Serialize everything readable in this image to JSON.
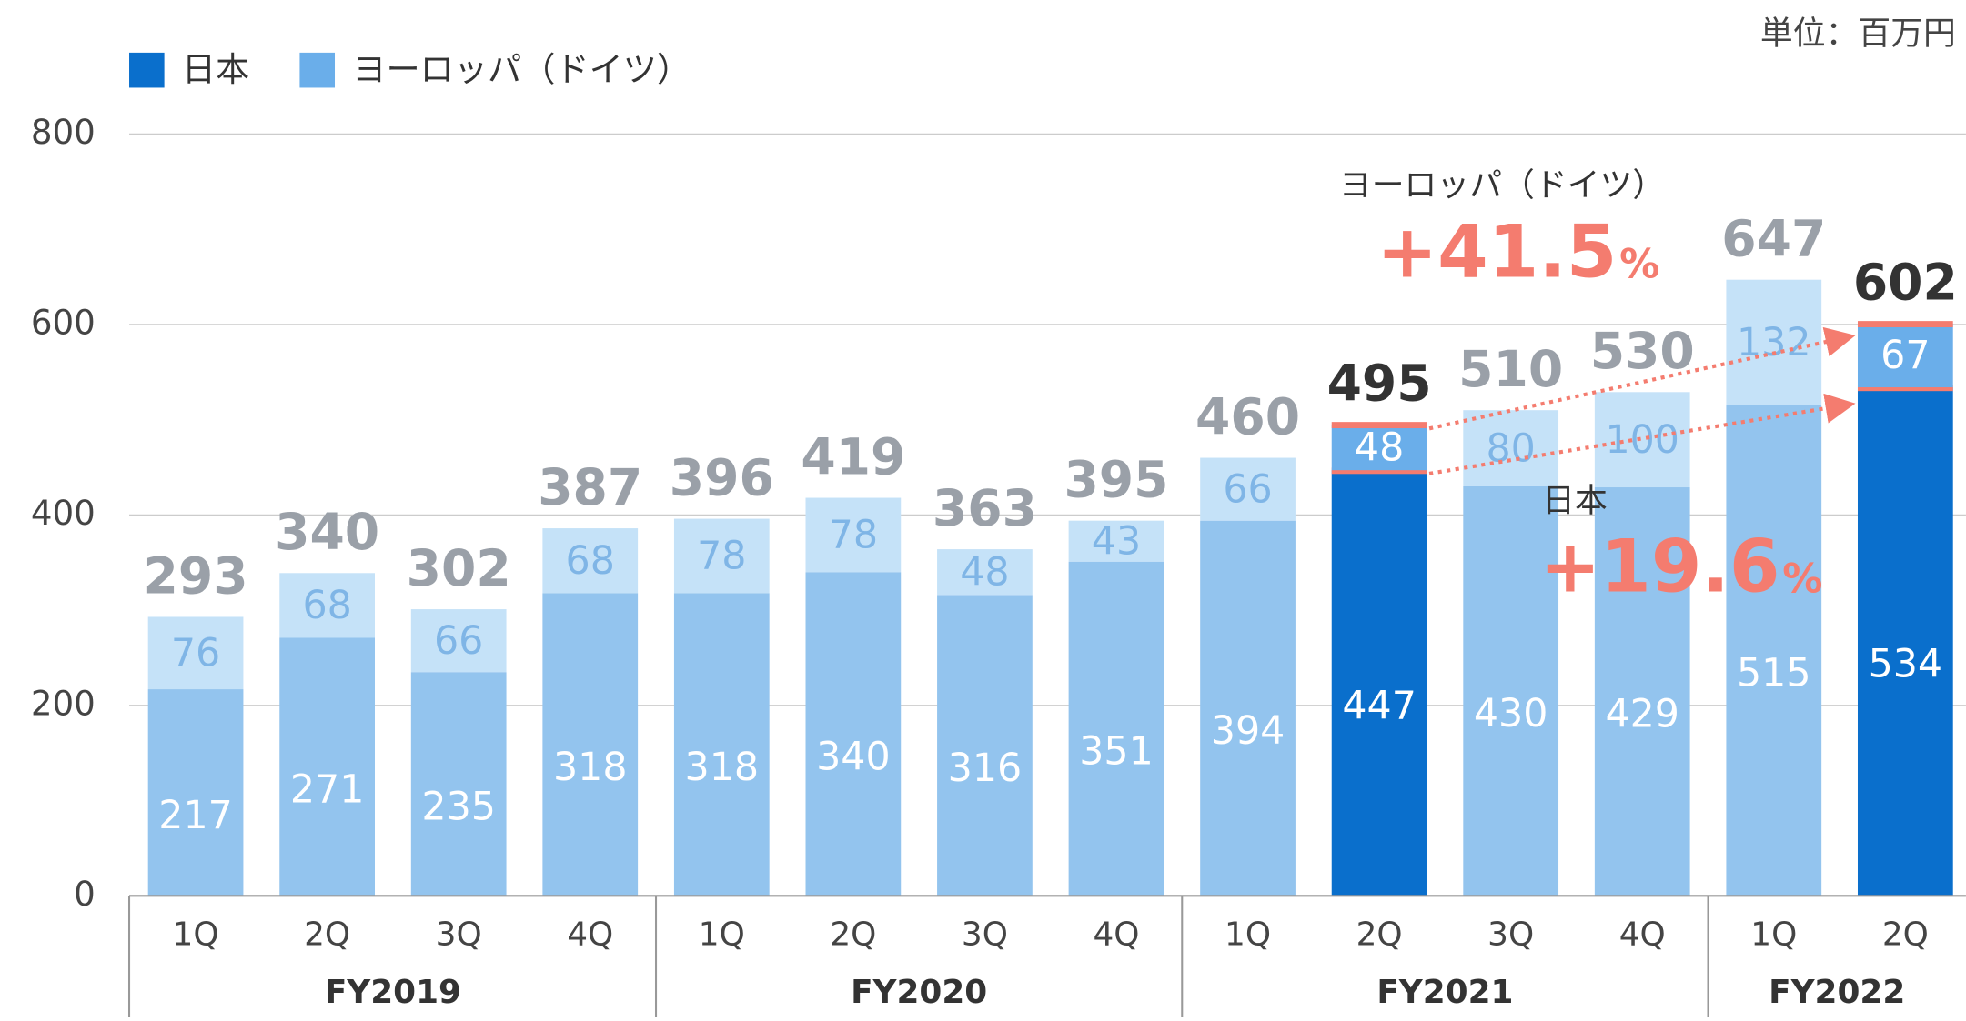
{
  "chart_data": {
    "type": "bar",
    "stacked": true,
    "unit_label": "単位：百万円",
    "groups": [
      {
        "name": "FY2019",
        "categories": [
          "1Q",
          "2Q",
          "3Q",
          "4Q"
        ]
      },
      {
        "name": "FY2020",
        "categories": [
          "1Q",
          "2Q",
          "3Q",
          "4Q"
        ]
      },
      {
        "name": "FY2021",
        "categories": [
          "1Q",
          "2Q",
          "3Q",
          "4Q"
        ]
      },
      {
        "name": "FY2022",
        "categories": [
          "1Q",
          "2Q"
        ]
      }
    ],
    "series": [
      {
        "name": "日本",
        "color": "#0a6fcc",
        "colors": [
          "#93c4ee",
          "#93c4ee",
          "#93c4ee",
          "#93c4ee",
          "#93c4ee",
          "#93c4ee",
          "#93c4ee",
          "#93c4ee",
          "#93c4ee",
          "#0a6fcc",
          "#93c4ee",
          "#93c4ee",
          "#93c4ee",
          "#0a6fcc"
        ],
        "values": [
          217,
          271,
          235,
          318,
          318,
          340,
          316,
          351,
          394,
          447,
          430,
          429,
          515,
          534
        ]
      },
      {
        "name": "ヨーロッパ（ドイツ）",
        "color": "#6aaeea",
        "colors": [
          "#c5e2f8",
          "#c5e2f8",
          "#c5e2f8",
          "#c5e2f8",
          "#c5e2f8",
          "#c5e2f8",
          "#c5e2f8",
          "#c5e2f8",
          "#c5e2f8",
          "#6aaeea",
          "#c5e2f8",
          "#c5e2f8",
          "#c5e2f8",
          "#6aaeea"
        ],
        "values": [
          76,
          68,
          66,
          68,
          78,
          78,
          48,
          43,
          66,
          48,
          80,
          100,
          132,
          67
        ]
      }
    ],
    "totals": [
      293,
      340,
      302,
      387,
      396,
      419,
      363,
      395,
      460,
      495,
      510,
      530,
      647,
      602
    ],
    "ylim": [
      0,
      800
    ],
    "yticks": [
      0,
      200,
      400,
      600,
      800
    ],
    "grid": true,
    "annotations": [
      {
        "label": "ヨーロッパ（ドイツ）",
        "value": "+41.5",
        "unit": "%"
      },
      {
        "label": "日本",
        "value": "+19.6",
        "unit": "%"
      }
    ]
  }
}
